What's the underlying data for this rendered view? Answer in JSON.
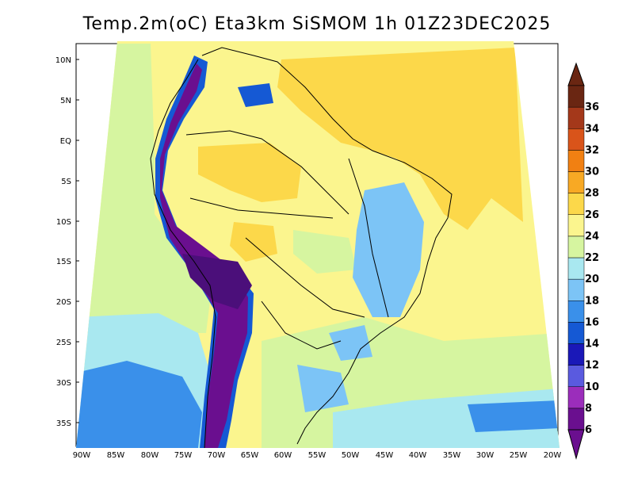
{
  "title": "Temp.2m(oC) Eta3km SiSMOM 1h 01Z23DEC2025",
  "lat_labels": [
    "10N",
    "5N",
    "EQ",
    "5S",
    "10S",
    "15S",
    "20S",
    "25S",
    "30S",
    "35S"
  ],
  "lon_labels": [
    "90W",
    "85W",
    "80W",
    "75W",
    "70W",
    "65W",
    "60W",
    "55W",
    "50W",
    "45W",
    "40W",
    "35W",
    "30W",
    "25W",
    "20W"
  ],
  "colorbar": {
    "levels": [
      "6",
      "8",
      "10",
      "12",
      "14",
      "16",
      "18",
      "20",
      "22",
      "24",
      "26",
      "28",
      "30",
      "32",
      "34",
      "36"
    ],
    "colors": [
      "#6a0f8f",
      "#9b2dbb",
      "#5a5adf",
      "#1a18b8",
      "#1559d4",
      "#3a90ea",
      "#7cc4f6",
      "#a9e8f0",
      "#d6f5a0",
      "#fbf58e",
      "#fcd84a",
      "#f8a924",
      "#f18012",
      "#d9541a",
      "#a4381a",
      "#6a2612"
    ]
  },
  "colors": {
    "deep_cold": "#4b0f7a",
    "cold": "#7c23a6",
    "cool_blue": "#2f7de6",
    "light_blue": "#8cd2f6",
    "pale_green": "#d6f5a0",
    "yellow": "#fbf58e",
    "gold": "#fcd84a"
  }
}
